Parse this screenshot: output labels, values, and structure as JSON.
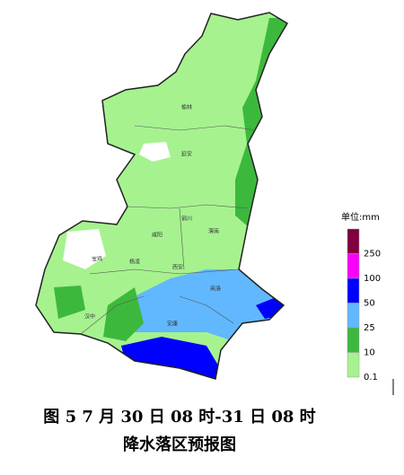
{
  "map": {
    "cities": [
      "榆林",
      "延安",
      "铜川",
      "渭南",
      "咸阳",
      "宝鸡",
      "杨凌",
      "西安",
      "商洛",
      "汉中",
      "安康"
    ],
    "legend": {
      "title": "单位:mm",
      "items": [
        {
          "label": 250,
          "color": "#800040"
        },
        {
          "label": 100,
          "color": "#fa00fa"
        },
        {
          "label": 50,
          "color": "#0000fe"
        },
        {
          "label": 25,
          "color": "#61b8ff"
        },
        {
          "label": 10,
          "color": "#3cb93c"
        },
        {
          "label": 0.1,
          "color": "#a6f28f"
        }
      ]
    }
  },
  "caption": {
    "line1": "图 5 7 月 30 日 08 时-31 日 08 时",
    "line2": "降水落区预报图"
  }
}
